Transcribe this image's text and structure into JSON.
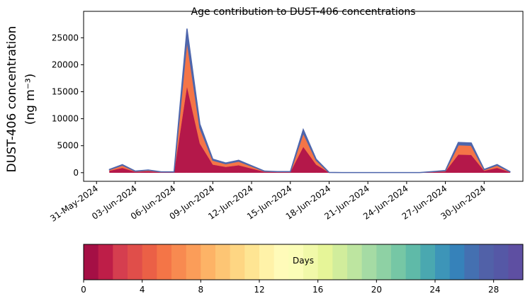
{
  "chart_data": {
    "type": "stacked-area",
    "title": "Age contribution to DUST-406 concentrations",
    "ylabel": "DUST-406 concentration",
    "ylabel_unit": "(ng m⁻³)",
    "x": [
      "2024-06-01",
      "2024-06-02",
      "2024-06-03",
      "2024-06-04",
      "2024-06-05",
      "2024-06-06",
      "2024-06-07",
      "2024-06-08",
      "2024-06-09",
      "2024-06-10",
      "2024-06-11",
      "2024-06-12",
      "2024-06-13",
      "2024-06-14",
      "2024-06-15",
      "2024-06-16",
      "2024-06-17",
      "2024-06-18",
      "2024-06-19",
      "2024-06-20",
      "2024-06-21",
      "2024-06-22",
      "2024-06-23",
      "2024-06-24",
      "2024-06-25",
      "2024-06-26",
      "2024-06-27",
      "2024-06-28",
      "2024-06-29",
      "2024-06-30",
      "2024-07-01",
      "2024-07-02"
    ],
    "series": [
      {
        "color": "#b4184a",
        "values": [
          360,
          900,
          180,
          300,
          90,
          90,
          16020,
          5400,
          1500,
          1080,
          1380,
          780,
          180,
          120,
          120,
          4800,
          1500,
          30,
          12,
          12,
          12,
          12,
          12,
          12,
          12,
          120,
          240,
          3360,
          3300,
          360,
          900,
          120
        ]
      },
      {
        "color": "#f47547",
        "values": [
          192,
          480,
          96,
          160,
          48,
          48,
          8544,
          2880,
          800,
          576,
          736,
          416,
          96,
          64,
          64,
          2560,
          800,
          16,
          6,
          6,
          6,
          6,
          6,
          6,
          6,
          64,
          128,
          1792,
          1760,
          192,
          480,
          64
        ]
      },
      {
        "color": "#4e66ac",
        "values": [
          48,
          120,
          24,
          40,
          12,
          12,
          2136,
          720,
          200,
          144,
          184,
          104,
          24,
          16,
          16,
          640,
          200,
          4,
          2,
          2,
          2,
          2,
          2,
          2,
          2,
          16,
          32,
          448,
          440,
          48,
          120,
          16
        ]
      }
    ],
    "xlim": [
      "2024-05-30",
      "2024-07-03"
    ],
    "xticks": [
      {
        "value": "2024-05-31",
        "label": "31-May-2024"
      },
      {
        "value": "2024-06-03",
        "label": "03-Jun-2024"
      },
      {
        "value": "2024-06-06",
        "label": "06-Jun-2024"
      },
      {
        "value": "2024-06-09",
        "label": "09-Jun-2024"
      },
      {
        "value": "2024-06-12",
        "label": "12-Jun-2024"
      },
      {
        "value": "2024-06-15",
        "label": "15-Jun-2024"
      },
      {
        "value": "2024-06-18",
        "label": "18-Jun-2024"
      },
      {
        "value": "2024-06-21",
        "label": "21-Jun-2024"
      },
      {
        "value": "2024-06-24",
        "label": "24-Jun-2024"
      },
      {
        "value": "2024-06-27",
        "label": "27-Jun-2024"
      },
      {
        "value": "2024-06-30",
        "label": "30-Jun-2024"
      }
    ],
    "ylim": [
      -1600,
      29900
    ],
    "yticks": [
      0,
      5000,
      10000,
      15000,
      20000,
      25000
    ],
    "colorbar": {
      "label": "Days",
      "lim": [
        0,
        30
      ],
      "ticks": [
        0,
        4,
        8,
        12,
        16,
        20,
        24,
        28
      ],
      "colors": [
        "#a50f45",
        "#be1e48",
        "#d53e4f",
        "#e04e4a",
        "#eb6046",
        "#f47547",
        "#f88a50",
        "#fb9d59",
        "#fdb366",
        "#fdc574",
        "#fed683",
        "#fee593",
        "#fff2a8",
        "#fffbb9",
        "#fbfdb7",
        "#f1f9a9",
        "#e6f598",
        "#d1ed9c",
        "#bde5a0",
        "#a5dba4",
        "#8ed1a4",
        "#76c7a5",
        "#5fbaa8",
        "#4aa8b0",
        "#3d95b8",
        "#3682ba",
        "#4470b1",
        "#5161a8",
        "#5558a6",
        "#5e4fa2"
      ]
    }
  }
}
